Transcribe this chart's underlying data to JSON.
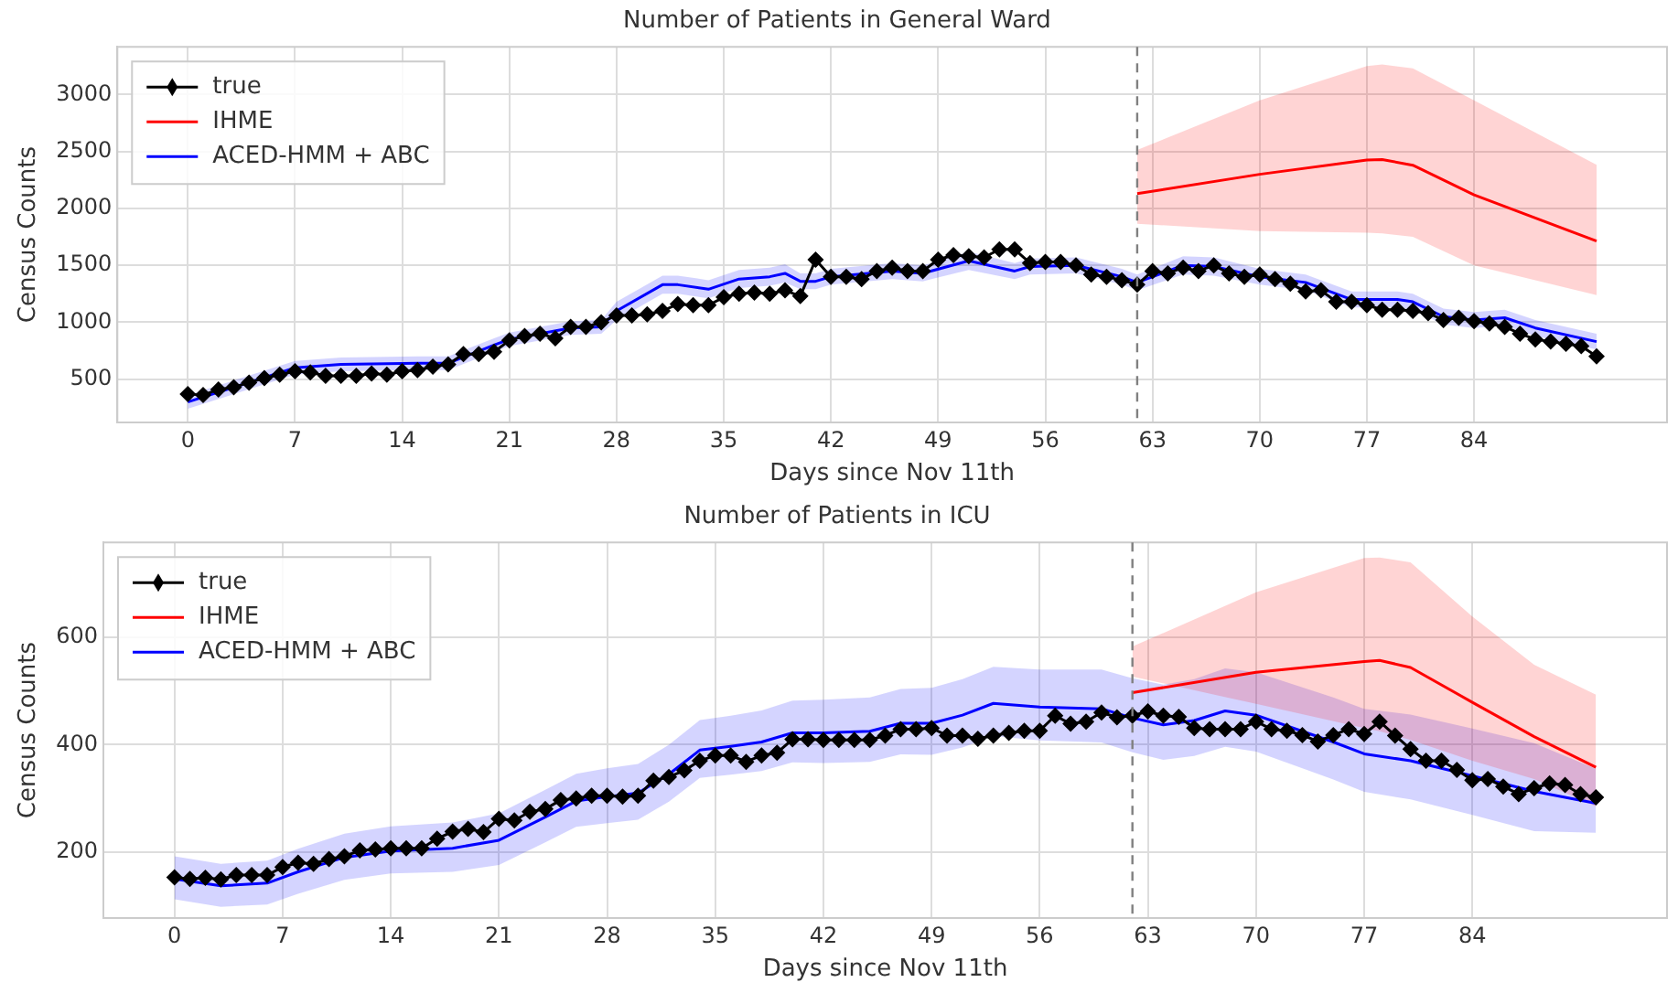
{
  "chart_data": [
    {
      "type": "line",
      "title": "Number of Patients in General Ward",
      "xlabel": "Days since Nov 11th",
      "ylabel": "Census Counts",
      "xlim": [
        -4.6,
        96.6
      ],
      "xticks": [
        0,
        7,
        14,
        21,
        28,
        35,
        42,
        49,
        56,
        63,
        70,
        77,
        84
      ],
      "ylim": [
        120,
        3420
      ],
      "yticks": [
        500,
        1000,
        1500,
        2000,
        2500,
        3000
      ],
      "grid": true,
      "legend": "top left",
      "ref_lines": [
        {
          "axis": "x",
          "value": 62,
          "color": "#808080",
          "line_style": "dashed"
        }
      ],
      "series": [
        {
          "name": "true",
          "color": "#000000",
          "marker": "diamond",
          "x": [
            0,
            1,
            2,
            3,
            4,
            5,
            6,
            7,
            8,
            9,
            10,
            11,
            12,
            13,
            14,
            15,
            16,
            17,
            18,
            19,
            20,
            21,
            22,
            23,
            24,
            25,
            26,
            27,
            28,
            29,
            30,
            31,
            32,
            33,
            34,
            35,
            36,
            37,
            38,
            39,
            40,
            41,
            42,
            43,
            44,
            45,
            46,
            47,
            48,
            49,
            50,
            51,
            52,
            53,
            54,
            55,
            56,
            57,
            58,
            59,
            60,
            61,
            62,
            63,
            64,
            65,
            66,
            67,
            68,
            69,
            70,
            71,
            72,
            73,
            74,
            75,
            76,
            77,
            78,
            79,
            80,
            81,
            82,
            83,
            84,
            85,
            86,
            87,
            88,
            89,
            90,
            91,
            92
          ],
          "values": [
            370,
            360,
            410,
            430,
            470,
            510,
            540,
            570,
            560,
            530,
            530,
            530,
            550,
            540,
            570,
            580,
            610,
            630,
            720,
            720,
            740,
            840,
            880,
            900,
            860,
            960,
            960,
            1000,
            1060,
            1060,
            1070,
            1100,
            1160,
            1150,
            1150,
            1220,
            1250,
            1260,
            1250,
            1280,
            1230,
            1550,
            1400,
            1400,
            1380,
            1450,
            1480,
            1450,
            1450,
            1550,
            1590,
            1580,
            1570,
            1640,
            1640,
            1520,
            1530,
            1530,
            1500,
            1420,
            1400,
            1370,
            1330,
            1450,
            1430,
            1480,
            1450,
            1500,
            1430,
            1400,
            1420,
            1380,
            1340,
            1270,
            1280,
            1180,
            1180,
            1150,
            1110,
            1110,
            1100,
            1080,
            1020,
            1040,
            1010,
            990,
            960,
            900,
            850,
            830,
            810,
            790,
            700
          ]
        },
        {
          "name": "IHME",
          "color": "#ff0000",
          "marker": "none",
          "x": [
            62,
            70,
            77,
            78,
            80,
            84,
            92
          ],
          "values": [
            2130,
            2300,
            2426,
            2430,
            2380,
            2120,
            1713
          ],
          "lower": [
            1866,
            1800,
            1786,
            1780,
            1750,
            1500,
            1239
          ],
          "upper": [
            2514,
            2950,
            3250,
            3264,
            3230,
            2950,
            2383
          ]
        },
        {
          "name": "ACED-HMM + ABC",
          "color": "#0000ff",
          "marker": "none",
          "x": [
            0,
            7,
            10,
            15,
            17,
            20,
            21,
            25,
            27,
            28,
            31,
            32,
            34,
            36,
            38,
            39,
            40,
            41,
            42,
            46,
            48,
            51,
            54,
            55,
            58,
            61,
            62,
            65,
            67,
            70,
            73,
            76,
            79,
            80,
            82,
            84,
            86,
            88,
            92
          ],
          "values": [
            300,
            600,
            630,
            640,
            640,
            800,
            850,
            950,
            960,
            1100,
            1330,
            1330,
            1290,
            1380,
            1400,
            1430,
            1360,
            1360,
            1400,
            1450,
            1430,
            1540,
            1450,
            1490,
            1500,
            1400,
            1350,
            1500,
            1490,
            1400,
            1350,
            1200,
            1200,
            1180,
            1050,
            1020,
            1040,
            950,
            830
          ],
          "lower": [
            240,
            540,
            570,
            580,
            580,
            740,
            790,
            890,
            900,
            1020,
            1250,
            1250,
            1210,
            1300,
            1320,
            1350,
            1290,
            1290,
            1330,
            1380,
            1360,
            1460,
            1380,
            1420,
            1430,
            1330,
            1280,
            1420,
            1410,
            1330,
            1280,
            1130,
            1130,
            1110,
            980,
            950,
            970,
            880,
            760
          ],
          "upper": [
            360,
            660,
            690,
            700,
            700,
            860,
            910,
            1010,
            1020,
            1180,
            1410,
            1410,
            1370,
            1460,
            1480,
            1510,
            1430,
            1430,
            1470,
            1520,
            1500,
            1620,
            1520,
            1560,
            1570,
            1470,
            1420,
            1580,
            1570,
            1470,
            1420,
            1270,
            1270,
            1250,
            1120,
            1090,
            1110,
            1020,
            900
          ]
        }
      ]
    },
    {
      "type": "line",
      "title": "Number of Patients in ICU",
      "xlabel": "Days since Nov 11th",
      "ylabel": "Census Counts",
      "xlim": [
        -4.6,
        96.6
      ],
      "xticks": [
        0,
        7,
        14,
        21,
        28,
        35,
        42,
        49,
        56,
        63,
        70,
        77,
        84
      ],
      "ylim": [
        77,
        777
      ],
      "yticks": [
        200,
        400,
        600
      ],
      "grid": true,
      "legend": "top left",
      "ref_lines": [
        {
          "axis": "x",
          "value": 62,
          "color": "#808080",
          "line_style": "dashed"
        }
      ],
      "series": [
        {
          "name": "true",
          "color": "#000000",
          "marker": "diamond",
          "x": [
            0,
            1,
            2,
            3,
            4,
            5,
            6,
            7,
            8,
            9,
            10,
            11,
            12,
            13,
            14,
            15,
            16,
            17,
            18,
            19,
            20,
            21,
            22,
            23,
            24,
            25,
            26,
            27,
            28,
            29,
            30,
            31,
            32,
            33,
            34,
            35,
            36,
            37,
            38,
            39,
            40,
            41,
            42,
            43,
            44,
            45,
            46,
            47,
            48,
            49,
            50,
            51,
            52,
            53,
            54,
            55,
            56,
            57,
            58,
            59,
            60,
            61,
            62,
            63,
            64,
            65,
            66,
            67,
            68,
            69,
            70,
            71,
            72,
            73,
            74,
            75,
            76,
            77,
            78,
            79,
            80,
            81,
            82,
            83,
            84,
            85,
            86,
            87,
            88,
            89,
            90,
            91,
            92
          ],
          "values": [
            153,
            150,
            152,
            149,
            157,
            157,
            157,
            172,
            180,
            178,
            187,
            192,
            203,
            205,
            207,
            207,
            207,
            225,
            238,
            243,
            237,
            262,
            259,
            275,
            280,
            297,
            300,
            305,
            305,
            303,
            305,
            333,
            340,
            352,
            370,
            380,
            380,
            368,
            380,
            385,
            410,
            410,
            409,
            409,
            409,
            409,
            417,
            429,
            429,
            431,
            417,
            417,
            411,
            417,
            422,
            426,
            426,
            454,
            439,
            443,
            460,
            451,
            454,
            462,
            454,
            452,
            431,
            429,
            429,
            429,
            443,
            429,
            426,
            418,
            406,
            418,
            429,
            420,
            443,
            417,
            392,
            370,
            370,
            353,
            334,
            336,
            322,
            308,
            319,
            328,
            325,
            308,
            302
          ]
        },
        {
          "name": "IHME",
          "color": "#ff0000",
          "marker": "none",
          "x": [
            62,
            70,
            77,
            78,
            80,
            84,
            88,
            92
          ],
          "values": [
            497,
            535,
            555,
            557,
            544,
            479,
            415,
            358
          ],
          "lower": [
            527,
            476,
            431,
            425,
            409,
            370,
            336,
            285
          ],
          "upper": [
            583,
            684,
            748,
            749,
            740,
            639,
            549,
            493
          ]
        },
        {
          "name": "ACED-HMM + ABC",
          "color": "#0000ff",
          "marker": "none",
          "x": [
            0,
            3,
            6,
            8,
            11,
            14,
            18,
            21,
            24,
            26,
            28,
            30,
            32,
            34,
            36,
            38,
            40,
            42,
            45,
            47,
            49,
            51,
            53,
            56,
            60,
            62,
            64,
            66,
            68,
            70,
            73,
            75,
            77,
            80,
            84,
            88,
            92
          ],
          "values": [
            150,
            137,
            142,
            163,
            190,
            202,
            207,
            222,
            265,
            295,
            303,
            310,
            345,
            390,
            397,
            405,
            422,
            422,
            425,
            440,
            440,
            455,
            477,
            470,
            467,
            450,
            437,
            445,
            463,
            455,
            425,
            405,
            383,
            370,
            342,
            313,
            291
          ],
          "lower": [
            112,
            98,
            102,
            122,
            148,
            160,
            163,
            176,
            218,
            247,
            254,
            260,
            294,
            338,
            344,
            351,
            367,
            366,
            368,
            382,
            381,
            395,
            416,
            408,
            404,
            386,
            372,
            379,
            396,
            387,
            356,
            335,
            312,
            298,
            269,
            239,
            236
          ],
          "upper": [
            192,
            178,
            184,
            206,
            234,
            248,
            255,
            272,
            316,
            346,
            356,
            364,
            400,
            446,
            454,
            464,
            482,
            484,
            488,
            504,
            506,
            522,
            545,
            540,
            540,
            524,
            512,
            522,
            542,
            535,
            507,
            488,
            467,
            456,
            430,
            403,
            355
          ]
        }
      ]
    }
  ]
}
